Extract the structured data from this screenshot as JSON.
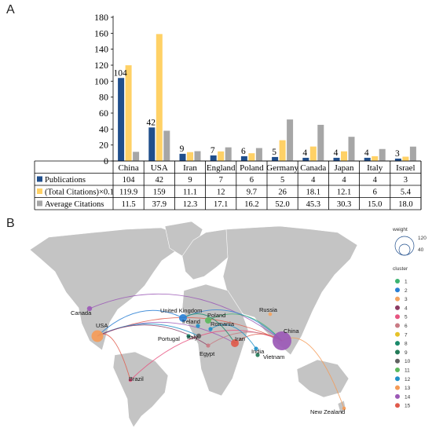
{
  "panel_a": {
    "label": "A"
  },
  "panel_b": {
    "label": "B"
  },
  "colors": {
    "publications": "#1f4e8c",
    "total_citations": "#ffd166",
    "average_citations": "#a6a6a6",
    "land": "#c4c4c4"
  },
  "chart_data": [
    {
      "type": "bar",
      "title": "",
      "xlabel": "",
      "ylabel": "",
      "ylim": [
        0,
        180
      ],
      "yticks": [
        0,
        20,
        40,
        60,
        80,
        100,
        120,
        140,
        160,
        180
      ],
      "grid": false,
      "categories": [
        "China",
        "USA",
        "Iran",
        "England",
        "Poland",
        "Germany",
        "Canada",
        "Japan",
        "Italy",
        "Israel"
      ],
      "series": [
        {
          "name": "Publications",
          "color": "#1f4e8c",
          "values": [
            104,
            42,
            9,
            7,
            6,
            5,
            4,
            4,
            4,
            3
          ],
          "display": [
            "104",
            "42",
            "9",
            "7",
            "6",
            "5",
            "4",
            "4",
            "4",
            "3"
          ]
        },
        {
          "name": "(Total Citations)×0.1",
          "color": "#ffd166",
          "values": [
            119.9,
            159,
            11.1,
            12,
            9.7,
            26,
            18.1,
            12.1,
            6,
            5.4
          ],
          "display": [
            "119.9",
            "159",
            "11.1",
            "12",
            "9.7",
            "26",
            "18.1",
            "12.1",
            "6",
            "5.4"
          ]
        },
        {
          "name": "Average Citations",
          "color": "#a6a6a6",
          "values": [
            11.5,
            37.9,
            12.3,
            17.1,
            16.2,
            52.0,
            45.3,
            30.3,
            15.0,
            18.0
          ],
          "display": [
            "11.5",
            "37.9",
            "12.3",
            "17.1",
            "16.2",
            "52.0",
            "45.3",
            "30.3",
            "15.0",
            "18.0"
          ]
        }
      ],
      "data_labels": [
        "104",
        "42",
        "9",
        "7",
        "6",
        "5",
        "4",
        "4",
        "4",
        "3"
      ],
      "data_table": true
    },
    {
      "type": "scatter",
      "title": "",
      "nodes": [
        {
          "name": "China",
          "cluster": 14,
          "weight": 104
        },
        {
          "name": "USA",
          "cluster": 13,
          "weight": 42
        },
        {
          "name": "Iran",
          "cluster": 15,
          "weight": 9
        },
        {
          "name": "United Kingdom",
          "cluster": 2,
          "weight": 7
        },
        {
          "name": "Canada",
          "cluster": 14,
          "weight": 4
        },
        {
          "name": "Russia",
          "cluster": 3,
          "weight": 1
        },
        {
          "name": "Poland",
          "cluster": 11,
          "weight": 6
        },
        {
          "name": "Romania",
          "cluster": 12,
          "weight": 2
        },
        {
          "name": "Ireland",
          "cluster": 12,
          "weight": 2
        },
        {
          "name": "Portugal",
          "cluster": 8,
          "weight": 2
        },
        {
          "name": "Italy",
          "cluster": 10,
          "weight": 4
        },
        {
          "name": "Egypt",
          "cluster": 6,
          "weight": 2
        },
        {
          "name": "India",
          "cluster": 12,
          "weight": 2
        },
        {
          "name": "Vietnam",
          "cluster": 9,
          "weight": 2
        },
        {
          "name": "Brazil",
          "cluster": 5,
          "weight": 1
        },
        {
          "name": "New Zealand",
          "cluster": 13,
          "weight": 1
        }
      ]
    }
  ],
  "legend": {
    "weight_title": "weight",
    "weight_values": [
      "120",
      "40"
    ],
    "cluster_title": "cluster",
    "clusters": [
      {
        "label": "1",
        "color": "#3cb371"
      },
      {
        "label": "2",
        "color": "#2a7fd4"
      },
      {
        "label": "3",
        "color": "#f4a460"
      },
      {
        "label": "4",
        "color": "#8b3a62"
      },
      {
        "label": "5",
        "color": "#e75480"
      },
      {
        "label": "6",
        "color": "#c97b84"
      },
      {
        "label": "7",
        "color": "#e6c229"
      },
      {
        "label": "8",
        "color": "#1b8a6b"
      },
      {
        "label": "9",
        "color": "#237a57"
      },
      {
        "label": "10",
        "color": "#606060"
      },
      {
        "label": "11",
        "color": "#5cb85c"
      },
      {
        "label": "12",
        "color": "#1e90c8"
      },
      {
        "label": "13",
        "color": "#f59b57"
      },
      {
        "label": "14",
        "color": "#9b59b6"
      },
      {
        "label": "15",
        "color": "#e05a4b"
      }
    ]
  }
}
